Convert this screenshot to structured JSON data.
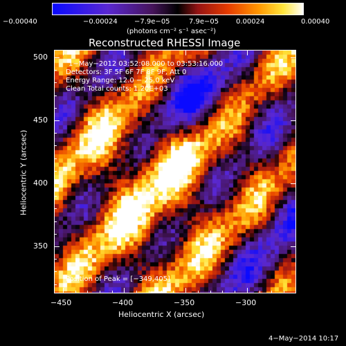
{
  "colorbar": {
    "tick_labels": [
      "−0.00040",
      "−0.00024",
      "−7.9e−05",
      "7.9e−05",
      "0.00024",
      "0.00040"
    ],
    "units_label": "(photons cm⁻² s⁻¹ asec⁻²)",
    "range": [
      -0.0004,
      0.0004
    ]
  },
  "plot": {
    "title": "Reconstructed RHESSI Image",
    "xlabel": "Heliocentric X (arcsec)",
    "ylabel": "Heliocentric Y (arcsec)",
    "x_ticks": [
      "−450",
      "−400",
      "−350",
      "−300"
    ],
    "y_ticks": [
      "500",
      "450",
      "400",
      "350"
    ]
  },
  "annotations": {
    "time_range": "1−May−2012 03:52:08.000 to 03:53:16.000",
    "detectors": "Detectors: 3F 5F 6F 7F 8F 9F, Att 0",
    "energy_range": "Energy Range: 12.0 − 25.0 keV",
    "clean_counts": "Clean    Total counts: 1.20E+03",
    "peak_position": "Position of Peak = [−349,405]"
  },
  "footer": {
    "date": "4−May−2014 10:17"
  },
  "chart_data": {
    "type": "heatmap",
    "title": "Reconstructed RHESSI Image",
    "xlabel": "Heliocentric X (arcsec)",
    "ylabel": "Heliocentric Y (arcsec)",
    "xlim": [
      -465,
      -268
    ],
    "ylim": [
      310,
      505
    ],
    "value_range": [
      -0.0004,
      0.0004
    ],
    "colormap": "blue-purple-black-red-orange-yellow-white",
    "grid": false,
    "peak": [
      -349,
      405
    ]
  }
}
